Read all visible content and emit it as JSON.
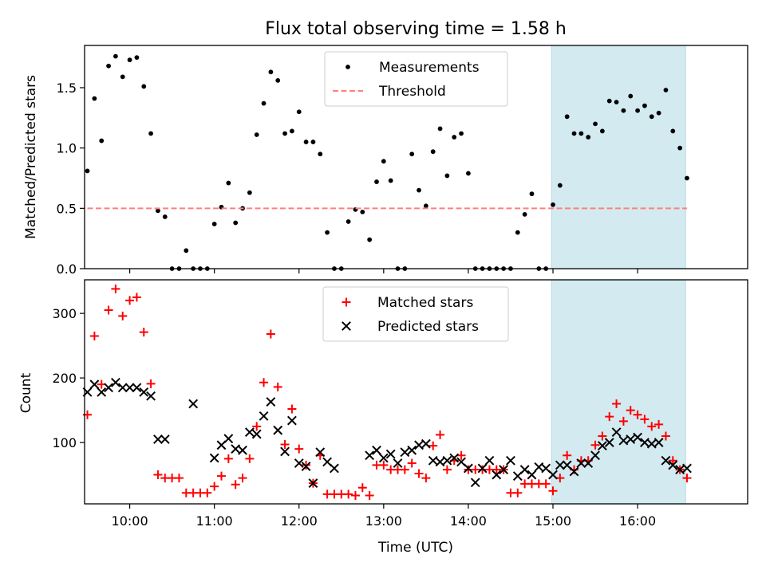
{
  "figure": {
    "title": "Flux total observing time = 1.58 h"
  },
  "chart_data": [
    {
      "type": "scatter",
      "ylabel": "Matched/Predicted stars",
      "xlim": [
        "09:28",
        "17:18"
      ],
      "ylim": [
        0,
        1.85
      ],
      "yticks": [
        0.0,
        0.5,
        1.0,
        1.5
      ],
      "ytick_labels": [
        "0.0",
        "0.5",
        "1.0",
        "1.5"
      ],
      "legend_position": "upper-center",
      "grid": false,
      "highlight_span": {
        "start": "14:59",
        "end": "16:34",
        "color": "#d3eaf0"
      },
      "series": [
        {
          "name": "Measurements",
          "color": "#000000",
          "marker": "dot",
          "x": [
            "09:30",
            "09:35",
            "09:40",
            "09:45",
            "09:50",
            "09:55",
            "10:00",
            "10:05",
            "10:10",
            "10:15",
            "10:20",
            "10:25",
            "10:30",
            "10:35",
            "10:40",
            "10:45",
            "10:50",
            "10:55",
            "11:00",
            "11:05",
            "11:10",
            "11:15",
            "11:20",
            "11:25",
            "11:30",
            "11:35",
            "11:40",
            "11:45",
            "11:50",
            "11:55",
            "12:00",
            "12:05",
            "12:10",
            "12:15",
            "12:20",
            "12:25",
            "12:30",
            "12:35",
            "12:40",
            "12:45",
            "12:50",
            "12:55",
            "13:00",
            "13:05",
            "13:10",
            "13:15",
            "13:20",
            "13:25",
            "13:30",
            "13:35",
            "13:40",
            "13:45",
            "13:50",
            "13:55",
            "14:00",
            "14:05",
            "14:10",
            "14:15",
            "14:20",
            "14:25",
            "14:30",
            "14:35",
            "14:40",
            "14:45",
            "14:50",
            "14:55",
            "15:00",
            "15:05",
            "15:10",
            "15:15",
            "15:20",
            "15:25",
            "15:30",
            "15:35",
            "15:40",
            "15:45",
            "15:50",
            "15:55",
            "16:00",
            "16:05",
            "16:10",
            "16:15",
            "16:20",
            "16:25",
            "16:30",
            "16:35"
          ],
          "y": [
            0.81,
            1.41,
            1.06,
            1.68,
            1.76,
            1.59,
            1.73,
            1.75,
            1.51,
            1.12,
            0.48,
            0.43,
            0.0,
            0.0,
            0.15,
            0.0,
            0.0,
            0.0,
            0.37,
            0.51,
            0.71,
            0.38,
            0.5,
            0.63,
            1.11,
            1.37,
            1.63,
            1.56,
            1.12,
            1.14,
            1.3,
            1.05,
            1.05,
            0.95,
            0.3,
            0.0,
            0.0,
            0.39,
            0.49,
            0.47,
            0.24,
            0.72,
            0.89,
            0.73,
            0.0,
            0.0,
            0.95,
            0.65,
            0.52,
            0.97,
            1.16,
            0.77,
            1.09,
            1.12,
            0.79,
            0.0,
            0.0,
            0.0,
            0.0,
            0.0,
            0.0,
            0.3,
            0.45,
            0.62,
            0.0,
            0.0,
            0.53,
            0.69,
            1.26,
            1.12,
            1.12,
            1.09,
            1.2,
            1.14,
            1.39,
            1.38,
            1.31,
            1.43,
            1.31,
            1.35,
            1.26,
            1.29,
            1.48,
            1.14,
            1.0,
            0.75
          ]
        },
        {
          "name": "Threshold",
          "color": "#ff7f7f",
          "style": "dashed",
          "x": [
            "09:30",
            "16:35"
          ],
          "y": [
            0.5,
            0.5
          ]
        }
      ]
    },
    {
      "type": "scatter",
      "xlabel": "Time (UTC)",
      "ylabel": "Count",
      "xlim": [
        "09:28",
        "17:18"
      ],
      "ylim": [
        5,
        352
      ],
      "yticks": [
        100,
        200,
        300
      ],
      "ytick_labels": [
        "100",
        "200",
        "300"
      ],
      "xticks": [
        "10:00",
        "11:00",
        "12:00",
        "13:00",
        "14:00",
        "15:00",
        "16:00"
      ],
      "xtick_labels": [
        "10:00",
        "11:00",
        "12:00",
        "13:00",
        "14:00",
        "15:00",
        "16:00"
      ],
      "legend_position": "upper-center",
      "grid": false,
      "highlight_span": {
        "start": "14:59",
        "end": "16:34",
        "color": "#d3eaf0"
      },
      "series": [
        {
          "name": "Matched stars",
          "color": "#ff0000",
          "marker": "plus",
          "x": [
            "09:30",
            "09:35",
            "09:40",
            "09:45",
            "09:50",
            "09:55",
            "10:00",
            "10:05",
            "10:10",
            "10:15",
            "10:20",
            "10:25",
            "10:30",
            "10:35",
            "10:40",
            "10:45",
            "10:50",
            "10:55",
            "11:00",
            "11:05",
            "11:10",
            "11:15",
            "11:20",
            "11:25",
            "11:30",
            "11:35",
            "11:40",
            "11:45",
            "11:50",
            "11:55",
            "12:00",
            "12:05",
            "12:10",
            "12:15",
            "12:20",
            "12:25",
            "12:30",
            "12:35",
            "12:40",
            "12:45",
            "12:50",
            "12:55",
            "13:00",
            "13:05",
            "13:10",
            "13:15",
            "13:20",
            "13:25",
            "13:30",
            "13:35",
            "13:40",
            "13:45",
            "13:50",
            "13:55",
            "14:00",
            "14:05",
            "14:10",
            "14:15",
            "14:20",
            "14:25",
            "14:30",
            "14:35",
            "14:40",
            "14:45",
            "14:50",
            "14:55",
            "15:00",
            "15:05",
            "15:10",
            "15:15",
            "15:20",
            "15:25",
            "15:30",
            "15:35",
            "15:40",
            "15:45",
            "15:50",
            "15:55",
            "16:00",
            "16:05",
            "16:10",
            "16:15",
            "16:20",
            "16:25",
            "16:30",
            "16:35"
          ],
          "y": [
            143,
            265,
            190,
            305,
            338,
            296,
            320,
            325,
            271,
            191,
            50,
            45,
            45,
            45,
            22,
            22,
            22,
            22,
            32,
            48,
            75,
            35,
            45,
            75,
            125,
            193,
            268,
            186,
            97,
            152,
            90,
            65,
            37,
            80,
            20,
            20,
            20,
            20,
            18,
            30,
            18,
            65,
            65,
            58,
            58,
            58,
            68,
            52,
            45,
            95,
            112,
            58,
            72,
            80,
            58,
            58,
            58,
            58,
            58,
            58,
            22,
            22,
            36,
            36,
            36,
            36,
            25,
            45,
            80,
            58,
            72,
            72,
            96,
            110,
            140,
            160,
            133,
            150,
            143,
            136,
            125,
            128,
            110,
            72,
            58,
            45
          ]
        },
        {
          "name": "Predicted stars",
          "color": "#000000",
          "marker": "x",
          "x": [
            "09:30",
            "09:35",
            "09:40",
            "09:45",
            "09:50",
            "09:55",
            "10:00",
            "10:05",
            "10:10",
            "10:15",
            "10:20",
            "10:25",
            "10:45",
            "11:00",
            "11:05",
            "11:10",
            "11:15",
            "11:20",
            "11:25",
            "11:30",
            "11:35",
            "11:40",
            "11:45",
            "11:50",
            "11:55",
            "12:00",
            "12:05",
            "12:10",
            "12:15",
            "12:20",
            "12:25",
            "12:50",
            "12:55",
            "13:00",
            "13:05",
            "13:10",
            "13:15",
            "13:20",
            "13:25",
            "13:30",
            "13:35",
            "13:40",
            "13:45",
            "13:50",
            "13:55",
            "14:00",
            "14:05",
            "14:10",
            "14:15",
            "14:20",
            "14:25",
            "14:30",
            "14:35",
            "14:40",
            "14:45",
            "14:50",
            "14:55",
            "15:00",
            "15:05",
            "15:10",
            "15:15",
            "15:20",
            "15:25",
            "15:30",
            "15:35",
            "15:40",
            "15:45",
            "15:50",
            "15:55",
            "16:00",
            "16:05",
            "16:10",
            "16:15",
            "16:20",
            "16:25",
            "16:30",
            "16:35"
          ],
          "y": [
            178,
            190,
            178,
            185,
            193,
            185,
            185,
            185,
            178,
            172,
            105,
            105,
            160,
            76,
            96,
            106,
            90,
            88,
            116,
            113,
            141,
            163,
            119,
            86,
            134,
            68,
            63,
            37,
            85,
            70,
            60,
            80,
            88,
            76,
            82,
            68,
            85,
            88,
            96,
            98,
            72,
            70,
            72,
            76,
            70,
            60,
            38,
            60,
            72,
            50,
            58,
            72,
            48,
            58,
            50,
            62,
            60,
            50,
            65,
            65,
            55,
            68,
            68,
            80,
            95,
            100,
            116,
            103,
            105,
            108,
            100,
            98,
            100,
            72,
            65,
            58,
            60
          ]
        }
      ]
    }
  ]
}
